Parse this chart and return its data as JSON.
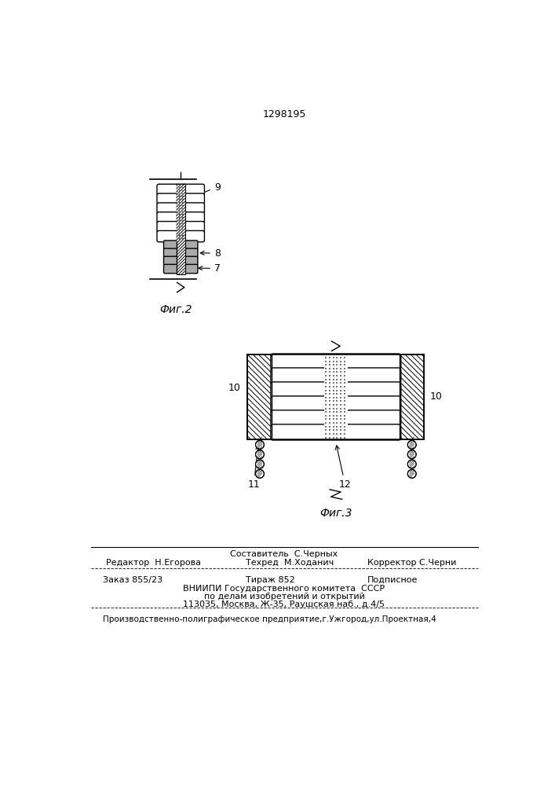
{
  "patent_number": "1298195",
  "fig2_label": "Фиг.2",
  "fig3_label": "Фиг.3",
  "label_7": "7",
  "label_8": "8",
  "label_9": "9",
  "label_10": "10",
  "label_11": "11",
  "label_12": "12",
  "footer_line1": "Составитель  С.Черных",
  "footer_line2_left": "Редактор  Н.Егорова",
  "footer_line2_mid": "Техред  М.Ходанич",
  "footer_line2_right": "Корректор С.Черни",
  "footer_line3_left": "Заказ 855/23",
  "footer_line3_mid": "Тираж 852",
  "footer_line3_right": "Подписное",
  "footer_line4": "ВНИИПИ Государственного комитета  СССР",
  "footer_line5": "по делам изобретений и открытий",
  "footer_line6": "113035, Москва, Ж-35, Раушская наб., д.4/5",
  "footer_line7": "Производственно-полиграфическое предприятие,г.Ужгород,ул.Проектная,4",
  "bg_color": "#ffffff",
  "line_color": "#000000"
}
